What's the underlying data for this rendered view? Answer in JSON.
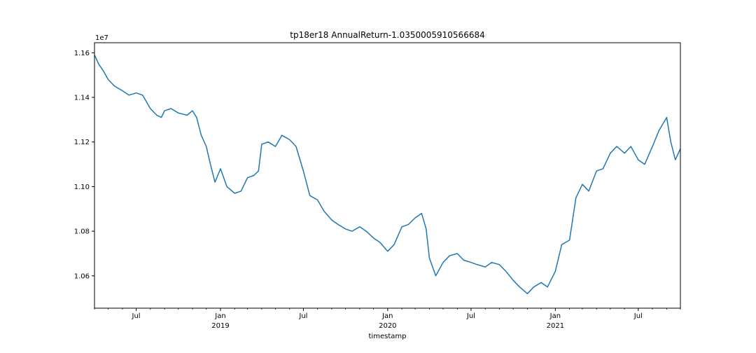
{
  "chart_data": {
    "type": "line",
    "title": "tp18er18 AnnualReturn-1.0350005910566684",
    "xlabel": "timestamp",
    "ylabel": "",
    "y_offset_label": "1e7",
    "xlim": [
      "2018-04-01",
      "2021-10-01"
    ],
    "ylim": [
      1.0455,
      1.1645
    ],
    "y_ticks": [
      {
        "value": 1.06,
        "label": "1.06"
      },
      {
        "value": 1.08,
        "label": "1.08"
      },
      {
        "value": 1.1,
        "label": "1.10"
      },
      {
        "value": 1.12,
        "label": "1.12"
      },
      {
        "value": 1.14,
        "label": "1.14"
      },
      {
        "value": 1.16,
        "label": "1.16"
      }
    ],
    "x_ticks": [
      {
        "date": "2018-07-01",
        "label": "Jul",
        "sublabel": ""
      },
      {
        "date": "2019-01-01",
        "label": "Jan",
        "sublabel": "2019"
      },
      {
        "date": "2019-07-01",
        "label": "Jul",
        "sublabel": ""
      },
      {
        "date": "2020-01-01",
        "label": "Jan",
        "sublabel": "2020"
      },
      {
        "date": "2020-07-01",
        "label": "Jul",
        "sublabel": ""
      },
      {
        "date": "2021-01-01",
        "label": "Jan",
        "sublabel": "2021"
      },
      {
        "date": "2021-07-01",
        "label": "Jul",
        "sublabel": ""
      }
    ],
    "grid": false,
    "series": [
      {
        "color": "#1f77b4",
        "x": [
          "2018-04-01",
          "2018-04-10",
          "2018-04-20",
          "2018-05-01",
          "2018-05-15",
          "2018-06-01",
          "2018-06-15",
          "2018-07-01",
          "2018-07-15",
          "2018-08-01",
          "2018-08-15",
          "2018-08-25",
          "2018-09-01",
          "2018-09-15",
          "2018-10-01",
          "2018-10-20",
          "2018-11-01",
          "2018-11-10",
          "2018-11-20",
          "2018-12-01",
          "2018-12-10",
          "2018-12-20",
          "2019-01-01",
          "2019-01-15",
          "2019-02-01",
          "2019-02-15",
          "2019-03-01",
          "2019-03-15",
          "2019-03-25",
          "2019-04-01",
          "2019-04-15",
          "2019-05-01",
          "2019-05-15",
          "2019-06-01",
          "2019-06-15",
          "2019-07-01",
          "2019-07-15",
          "2019-08-01",
          "2019-08-15",
          "2019-09-01",
          "2019-09-15",
          "2019-10-01",
          "2019-10-15",
          "2019-11-01",
          "2019-11-15",
          "2019-12-01",
          "2019-12-15",
          "2020-01-01",
          "2020-01-15",
          "2020-02-01",
          "2020-02-15",
          "2020-03-01",
          "2020-03-15",
          "2020-03-25",
          "2020-04-01",
          "2020-04-15",
          "2020-05-01",
          "2020-05-15",
          "2020-06-01",
          "2020-06-15",
          "2020-07-01",
          "2020-07-15",
          "2020-08-01",
          "2020-08-15",
          "2020-09-01",
          "2020-09-15",
          "2020-10-01",
          "2020-10-15",
          "2020-11-01",
          "2020-11-15",
          "2020-12-01",
          "2020-12-15",
          "2021-01-01",
          "2021-01-15",
          "2021-02-01",
          "2021-02-15",
          "2021-03-01",
          "2021-03-15",
          "2021-04-01",
          "2021-04-15",
          "2021-05-01",
          "2021-05-15",
          "2021-06-01",
          "2021-06-15",
          "2021-07-01",
          "2021-07-15",
          "2021-08-01",
          "2021-08-15",
          "2021-09-01",
          "2021-09-10",
          "2021-09-20",
          "2021-10-01"
        ],
        "y": [
          1.159,
          1.155,
          1.152,
          1.148,
          1.145,
          1.143,
          1.141,
          1.142,
          1.141,
          1.135,
          1.132,
          1.131,
          1.134,
          1.135,
          1.133,
          1.132,
          1.134,
          1.131,
          1.123,
          1.118,
          1.11,
          1.102,
          1.108,
          1.1,
          1.097,
          1.098,
          1.104,
          1.105,
          1.107,
          1.119,
          1.12,
          1.118,
          1.123,
          1.121,
          1.118,
          1.107,
          1.096,
          1.094,
          1.089,
          1.085,
          1.083,
          1.081,
          1.08,
          1.082,
          1.08,
          1.077,
          1.075,
          1.071,
          1.074,
          1.082,
          1.083,
          1.086,
          1.088,
          1.081,
          1.068,
          1.06,
          1.066,
          1.069,
          1.07,
          1.067,
          1.066,
          1.065,
          1.064,
          1.066,
          1.065,
          1.062,
          1.058,
          1.055,
          1.052,
          1.055,
          1.057,
          1.055,
          1.062,
          1.074,
          1.076,
          1.095,
          1.101,
          1.098,
          1.107,
          1.108,
          1.115,
          1.118,
          1.115,
          1.118,
          1.112,
          1.11,
          1.118,
          1.125,
          1.131,
          1.12,
          1.112,
          1.117
        ]
      }
    ]
  }
}
